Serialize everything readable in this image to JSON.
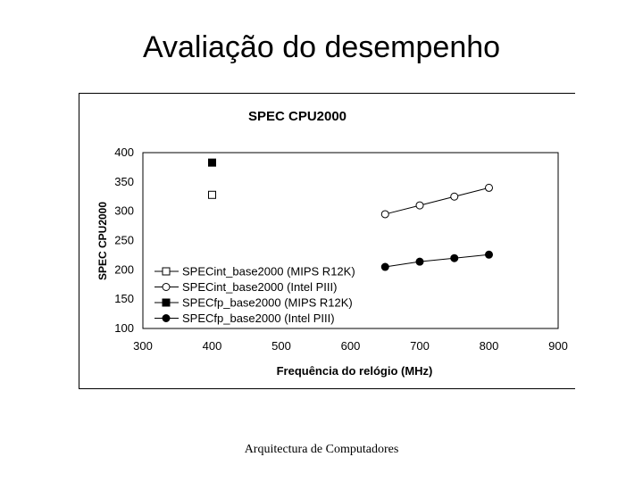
{
  "slide": {
    "title": "Avaliação do desempenho",
    "footer": "Arquitectura de Computadores"
  },
  "chart_data": {
    "type": "scatter",
    "title": "SPEC CPU2000",
    "xlabel": "Frequência do relógio (MHz)",
    "ylabel": "SPEC CPU2000",
    "xlim": [
      300,
      900
    ],
    "ylim": [
      100,
      400
    ],
    "xticks": [
      300,
      400,
      500,
      600,
      700,
      800,
      900
    ],
    "yticks": [
      100,
      150,
      200,
      250,
      300,
      350,
      400
    ],
    "grid": false,
    "legend_position": "bottom-left",
    "series": [
      {
        "name": "SPECint_base2000 (MIPS R12K)",
        "marker": "square-open",
        "line": false,
        "x": [
          400
        ],
        "y": [
          328
        ]
      },
      {
        "name": "SPECint_base2000 (Intel PIII)",
        "marker": "circle-open",
        "line": true,
        "x": [
          650,
          700,
          750,
          800
        ],
        "y": [
          295,
          310,
          325,
          340
        ]
      },
      {
        "name": "SPECfp_base2000 (MIPS R12K)",
        "marker": "square-filled",
        "line": false,
        "x": [
          400
        ],
        "y": [
          383
        ]
      },
      {
        "name": "SPECfp_base2000 (Intel PIII)",
        "marker": "circle-filled",
        "line": true,
        "x": [
          650,
          700,
          750,
          800
        ],
        "y": [
          205,
          214,
          220,
          226
        ]
      }
    ]
  }
}
